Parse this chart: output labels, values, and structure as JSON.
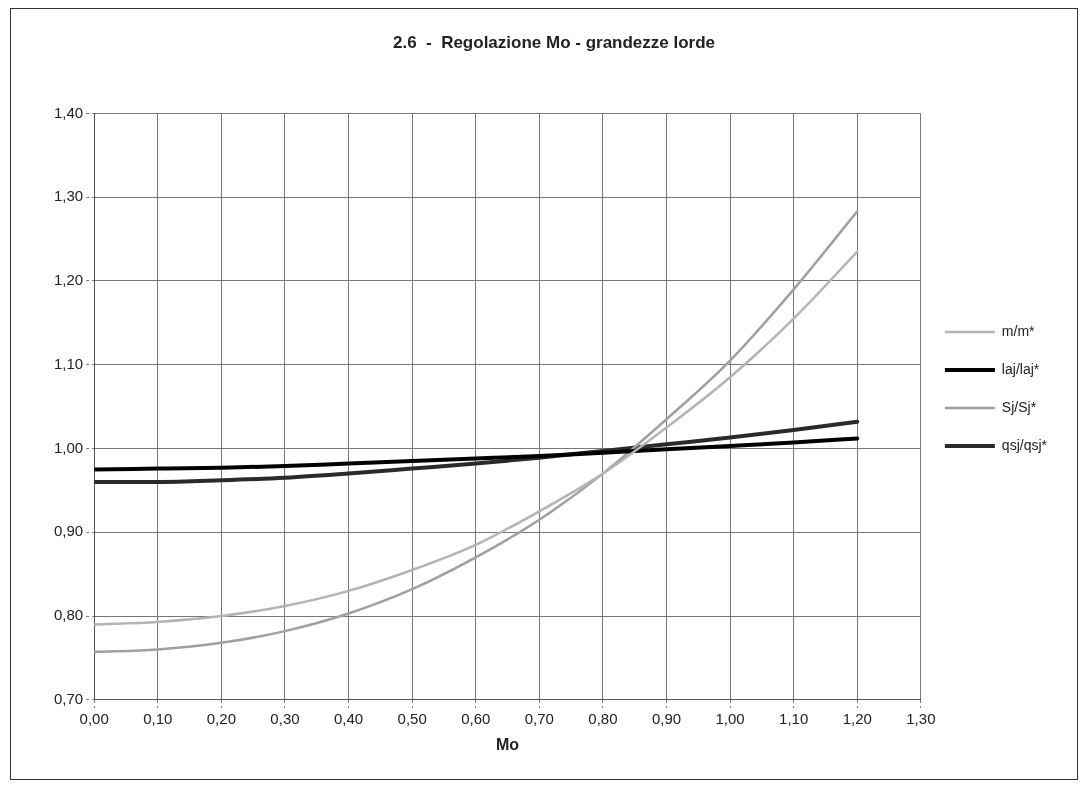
{
  "chart_data": {
    "type": "line",
    "title": "2.6  -  Regolazione Mo - grandezze lorde",
    "xlabel": "Mo",
    "x": [
      0,
      0.1,
      0.2,
      0.3,
      0.4,
      0.5,
      0.6,
      0.7,
      0.8,
      0.9,
      1.0,
      1.1,
      1.2
    ],
    "series": [
      {
        "name": "m/m*",
        "color": "#b4b4b4",
        "values": [
          0.79,
          0.793,
          0.8,
          0.812,
          0.83,
          0.855,
          0.885,
          0.925,
          0.97,
          1.025,
          1.085,
          1.155,
          1.235
        ]
      },
      {
        "name": "laj/laj*",
        "color": "#000000",
        "values": [
          0.975,
          0.976,
          0.977,
          0.979,
          0.982,
          0.985,
          0.988,
          0.991,
          0.995,
          0.999,
          1.003,
          1.007,
          1.012
        ]
      },
      {
        "name": "Sj/Sj*",
        "color": "#a0a0a0",
        "values": [
          0.757,
          0.76,
          0.768,
          0.782,
          0.803,
          0.832,
          0.87,
          0.915,
          0.97,
          1.035,
          1.105,
          1.19,
          1.283
        ]
      },
      {
        "name": "qsj/qsj*",
        "color": "#2a2a2a",
        "values": [
          0.96,
          0.96,
          0.962,
          0.965,
          0.97,
          0.976,
          0.982,
          0.989,
          0.997,
          1.005,
          1.013,
          1.022,
          1.032
        ]
      }
    ],
    "xlim": [
      0,
      1.3
    ],
    "xticks": [
      {
        "value": 0,
        "label": "0,00"
      },
      {
        "value": 0.1,
        "label": "0,10"
      },
      {
        "value": 0.2,
        "label": "0,20"
      },
      {
        "value": 0.3,
        "label": "0,30"
      },
      {
        "value": 0.4,
        "label": "0,40"
      },
      {
        "value": 0.5,
        "label": "0,50"
      },
      {
        "value": 0.6,
        "label": "0,60"
      },
      {
        "value": 0.7,
        "label": "0,70"
      },
      {
        "value": 0.8,
        "label": "0,80"
      },
      {
        "value": 0.9,
        "label": "0,90"
      },
      {
        "value": 1.0,
        "label": "1,00"
      },
      {
        "value": 1.1,
        "label": "1,10"
      },
      {
        "value": 1.2,
        "label": "1,20"
      },
      {
        "value": 1.3,
        "label": "1,30"
      }
    ],
    "ylim": [
      0.7,
      1.4
    ],
    "yticks": [
      {
        "value": 0.7,
        "label": "0,70"
      },
      {
        "value": 0.8,
        "label": "0,80"
      },
      {
        "value": 0.9,
        "label": "0,90"
      },
      {
        "value": 1.0,
        "label": "1,00"
      },
      {
        "value": 1.1,
        "label": "1,10"
      },
      {
        "value": 1.2,
        "label": "1,20"
      },
      {
        "value": 1.3,
        "label": "1,30"
      },
      {
        "value": 1.4,
        "label": "1,40"
      }
    ],
    "grid": true,
    "legend": "right",
    "marker": "none",
    "line_style": "solid"
  }
}
